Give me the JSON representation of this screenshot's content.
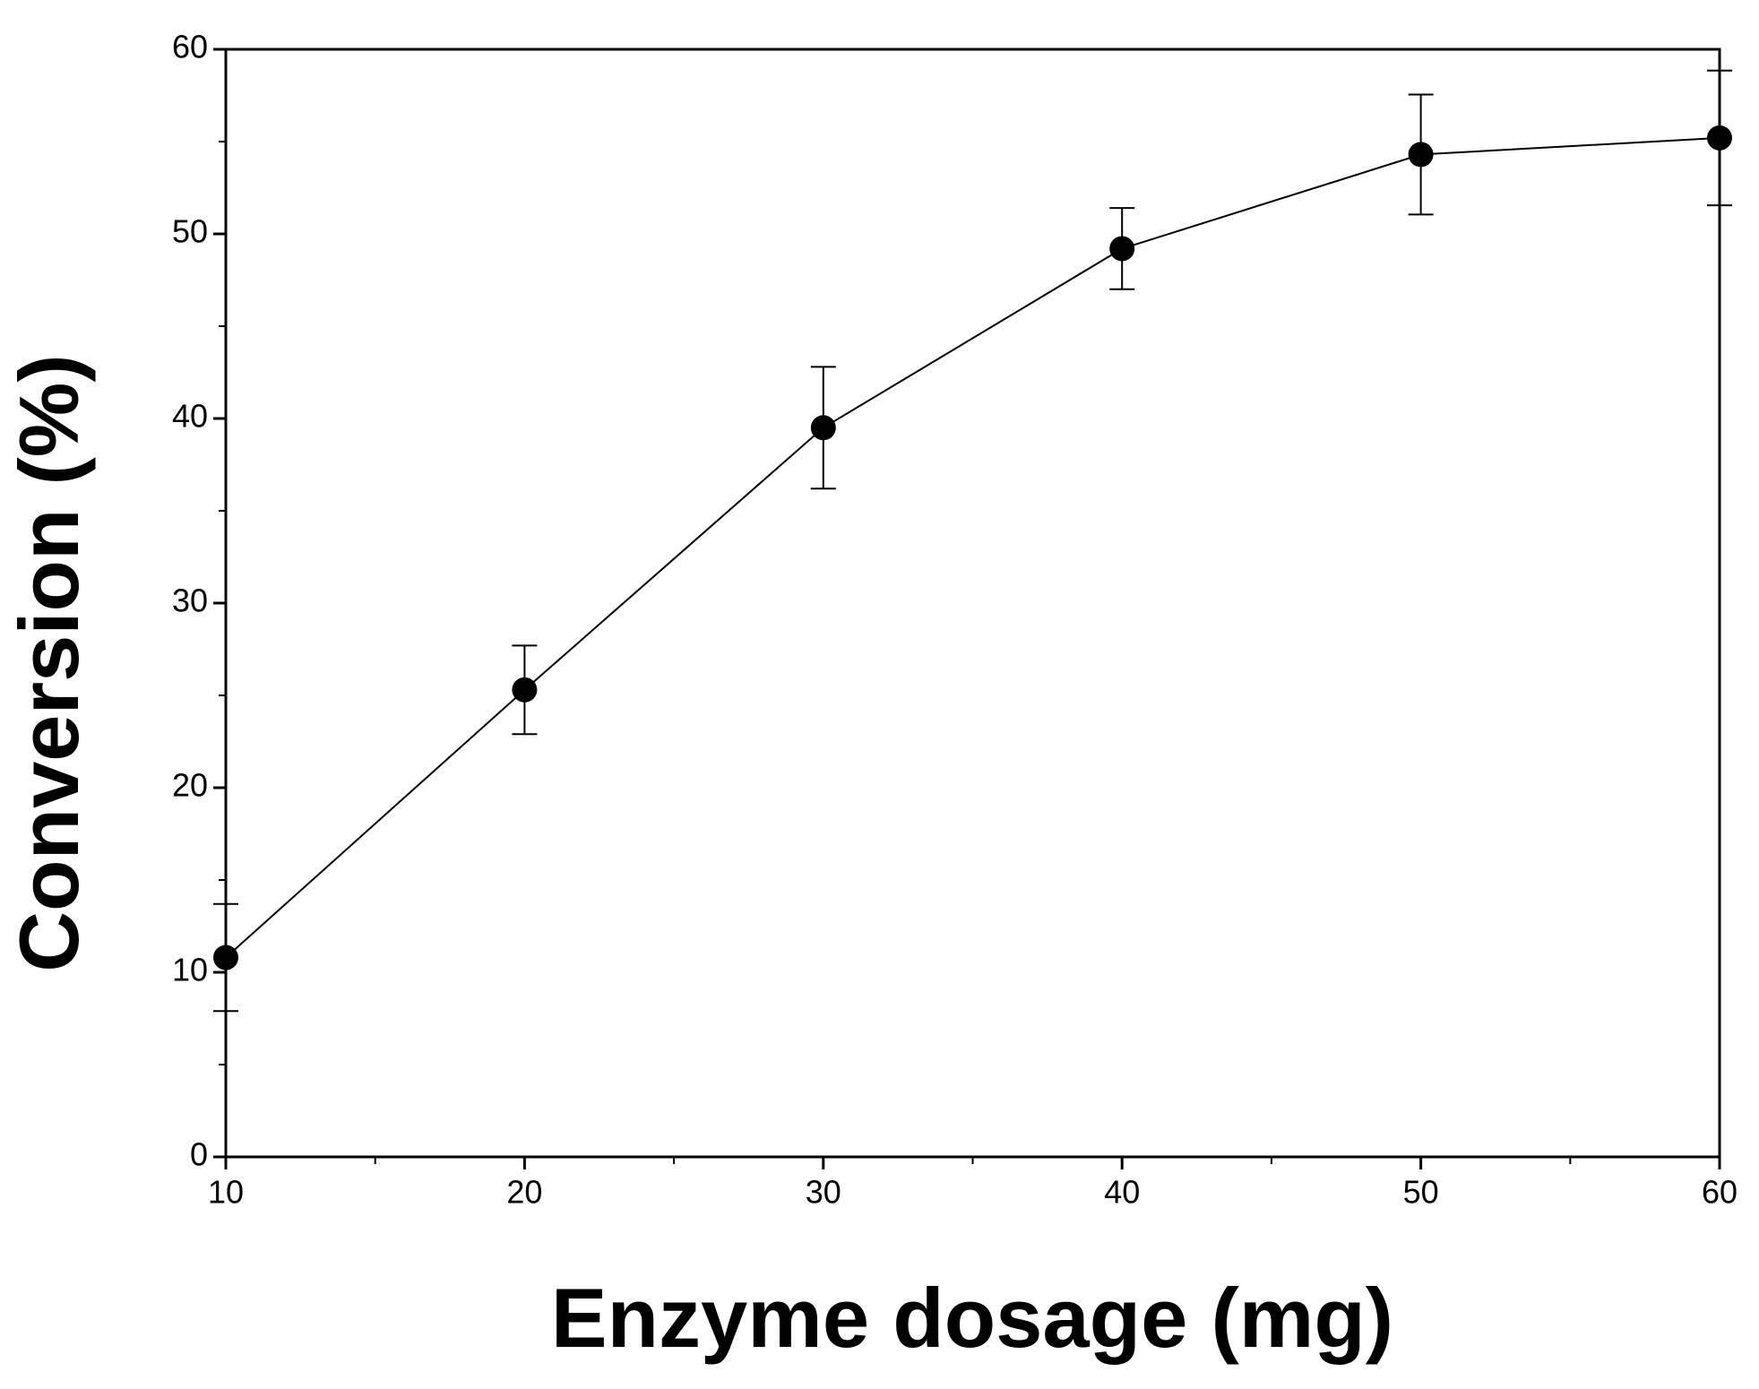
{
  "chart_data": {
    "type": "line",
    "x_label": "Enzyme dosage (mg)",
    "y_label": "Conversion (%)",
    "x": [
      10,
      20,
      30,
      40,
      50,
      60
    ],
    "series": [
      {
        "color": "#000000",
        "values": [
          10.8,
          25.3,
          39.5,
          49.2,
          54.3,
          55.2
        ],
        "errors": [
          2.9,
          2.4,
          3.3,
          2.2,
          3.25,
          3.65
        ]
      }
    ],
    "xlim": [
      10,
      60
    ],
    "xticks": [
      10,
      20,
      30,
      40,
      50,
      60
    ],
    "ylim": [
      0,
      60
    ],
    "yticks": [
      0,
      10,
      20,
      30,
      40,
      50,
      60
    ]
  }
}
